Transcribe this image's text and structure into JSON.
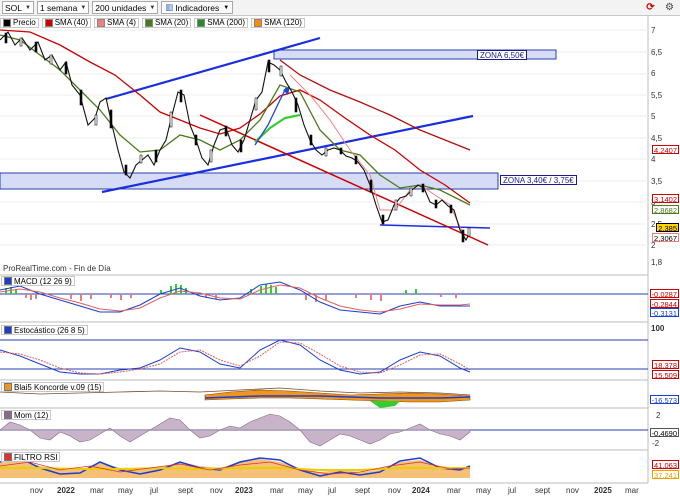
{
  "toolbar": {
    "symbol": "SOL",
    "period": "1 semana",
    "units": "200 unidades",
    "indicators_label": "Indicadores"
  },
  "legend": [
    {
      "label": "Precio",
      "color": "#000000"
    },
    {
      "label": "SMA (40)",
      "color": "#cc0000"
    },
    {
      "label": "SMA (4)",
      "color": "#f08080"
    },
    {
      "label": "SMA (20)",
      "color": "#4a7a1a"
    },
    {
      "label": "SMA (200)",
      "color": "#2a8a2a"
    },
    {
      "label": "SMA (120)",
      "color": "#ff8800"
    }
  ],
  "price_axis": [
    "7",
    "6,5",
    "6",
    "5,5",
    "5",
    "4,5",
    "4",
    "3,5",
    "3",
    "2,5",
    "2",
    "1,8"
  ],
  "price_tags": [
    {
      "value": "4,2407",
      "color": "#cc0000"
    },
    {
      "value": "3,1402",
      "color": "#cc0000"
    },
    {
      "value": "2,8682",
      "color": "#4a7a1a"
    },
    {
      "value": "2,385",
      "color": "#000000"
    },
    {
      "value": "2,3067",
      "color": "#f08080"
    }
  ],
  "zones": [
    "ZONA 6,50€",
    "ZONA 3,40€ / 3,75€"
  ],
  "source": "ProRealTime.com - Fin de Día",
  "panels": {
    "macd": {
      "label": "MACD (12 26 9)",
      "tags": [
        "-0,0287",
        "-0,2844",
        "-0,3131"
      ]
    },
    "stoch": {
      "label": "Estocástico (26 8 5)",
      "axis_top": "100",
      "tags": [
        "18,378",
        "15,509"
      ]
    },
    "koncorde": {
      "label": "Blai5 Koncorde v.09 (15)",
      "tags": [
        "-16,573"
      ]
    },
    "mom": {
      "label": "Mom (12)",
      "axis": [
        "2",
        "-2"
      ],
      "tags": [
        "-0,4690"
      ]
    },
    "rsi": {
      "label": "FILTRO RSI",
      "tags": [
        "41,063",
        "37,241"
      ]
    }
  },
  "time_axis": [
    "nov",
    "2022",
    "mar",
    "may",
    "jul",
    "sept",
    "nov",
    "2023",
    "mar",
    "may",
    "jul",
    "sept",
    "nov",
    "2024",
    "mar",
    "may",
    "jul",
    "sept",
    "nov",
    "2025",
    "mar"
  ]
}
